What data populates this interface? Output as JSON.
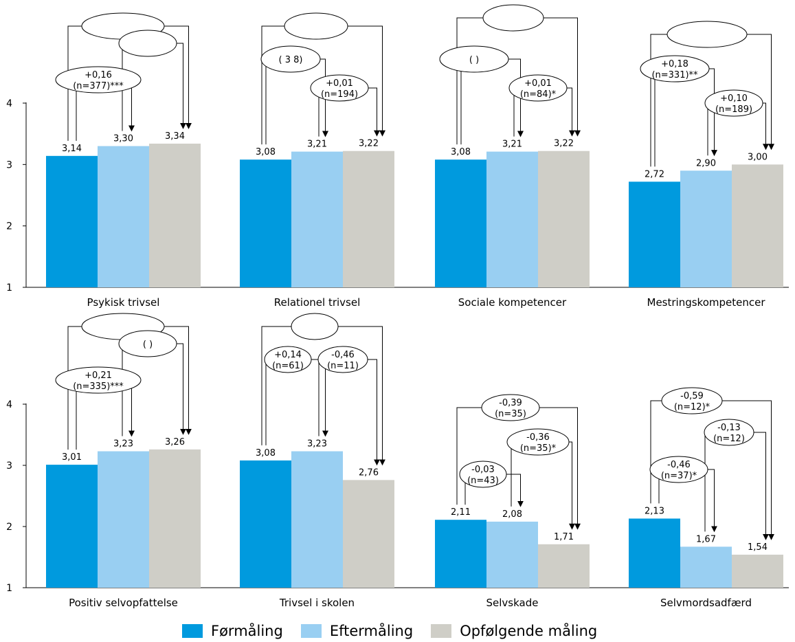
{
  "chart_data": {
    "type": "bar",
    "y_ticks": [
      "1",
      "2",
      "3",
      "4"
    ],
    "ylim": [
      1,
      4
    ],
    "grid": false,
    "legend_position": "bottom",
    "series": [
      {
        "name": "Førmåling",
        "color": "#009ADE"
      },
      {
        "name": "Eftermåling",
        "color": "#99CFF2"
      },
      {
        "name": "Opfølgende måling",
        "color": "#CFCEC7"
      }
    ],
    "panels": [
      {
        "category": "Psykisk trivsel",
        "values": [
          3.14,
          3.3,
          3.34
        ],
        "labels": [
          "3,14",
          "3,30",
          "3,34"
        ],
        "annotations": [
          {
            "from": 0,
            "to": 2,
            "text": [
              "",
              ""
            ],
            "dir": "top"
          },
          {
            "from": 1,
            "to": 2,
            "text": [
              "",
              ""
            ],
            "dir": "top"
          },
          {
            "from": 0,
            "to": 1,
            "text": [
              "+0,16",
              "(n=377)***"
            ],
            "dir": "top"
          }
        ]
      },
      {
        "category": "Relationel trivsel",
        "values": [
          3.08,
          3.21,
          3.22
        ],
        "labels": [
          "3,08",
          "3,21",
          "3,22"
        ],
        "annotations": [
          {
            "from": 0,
            "to": 2,
            "text": [
              "",
              ""
            ],
            "dir": "top"
          },
          {
            "from": 0,
            "to": 1,
            "text": [
              "(   3  8)",
              ""
            ],
            "dir": "top"
          },
          {
            "from": 1,
            "to": 2,
            "text": [
              "+0,01",
              "(n=194)"
            ],
            "dir": "top"
          }
        ]
      },
      {
        "category": "Sociale kompetencer",
        "values": [
          3.08,
          3.21,
          3.22
        ],
        "labels": [
          "3,08",
          "3,21",
          "3,22"
        ],
        "annotations": [
          {
            "from": 0,
            "to": 2,
            "text": [
              "",
              ""
            ],
            "dir": "top"
          },
          {
            "from": 0,
            "to": 1,
            "text": [
              "(          )",
              ""
            ],
            "dir": "top"
          },
          {
            "from": 1,
            "to": 2,
            "text": [
              "+0,01",
              "(n=84)*"
            ],
            "dir": "top"
          }
        ]
      },
      {
        "category": "Mestringskompetencer",
        "values": [
          2.72,
          2.9,
          3.0
        ],
        "labels": [
          "2,72",
          "2,90",
          "3,00"
        ],
        "annotations": [
          {
            "from": 0,
            "to": 2,
            "text": [
              "",
              ""
            ],
            "dir": "top"
          },
          {
            "from": 0,
            "to": 1,
            "text": [
              "+0,18",
              "(n=331)**"
            ],
            "dir": "top"
          },
          {
            "from": 1,
            "to": 2,
            "text": [
              "+0,10",
              "(n=189)"
            ],
            "dir": "top"
          }
        ]
      },
      {
        "category": "Positiv selvopfattelse",
        "values": [
          3.01,
          3.23,
          3.26
        ],
        "labels": [
          "3,01",
          "3,23",
          "3,26"
        ],
        "annotations": [
          {
            "from": 0,
            "to": 2,
            "text": [
              "",
              ""
            ],
            "dir": "top"
          },
          {
            "from": 1,
            "to": 2,
            "text": [
              "(          )",
              ""
            ],
            "dir": "top"
          },
          {
            "from": 0,
            "to": 1,
            "text": [
              "+0,21",
              "(n=335)***"
            ],
            "dir": "top"
          }
        ]
      },
      {
        "category": "Trivsel i skolen",
        "values": [
          3.08,
          3.23,
          2.76
        ],
        "labels": [
          "3,08",
          "3,23",
          "2,76"
        ],
        "annotations": [
          {
            "from": 0,
            "to": 2,
            "text": [
              "",
              ""
            ],
            "dir": "top"
          },
          {
            "from": 0,
            "to": 1,
            "text": [
              "+0,14",
              "(n=61)"
            ],
            "dir": "top"
          },
          {
            "from": 1,
            "to": 2,
            "text": [
              "-0,46",
              "(n=11)"
            ],
            "dir": "top"
          }
        ]
      },
      {
        "category": "Selvskade",
        "values": [
          2.11,
          2.08,
          1.71
        ],
        "labels": [
          "2,11",
          "2,08",
          "1,71"
        ],
        "annotations": [
          {
            "from": 0,
            "to": 2,
            "text": [
              "-0,39",
              "(n=35)"
            ],
            "dir": "top"
          },
          {
            "from": 1,
            "to": 2,
            "text": [
              "-0,36",
              "(n=35)*"
            ],
            "dir": "top"
          },
          {
            "from": 0,
            "to": 1,
            "text": [
              "-0,03",
              "(n=43)"
            ],
            "dir": "top"
          }
        ]
      },
      {
        "category": "Selvmordsadfærd",
        "values": [
          2.13,
          1.67,
          1.54
        ],
        "labels": [
          "2,13",
          "1,67",
          "1,54"
        ],
        "annotations": [
          {
            "from": 0,
            "to": 2,
            "text": [
              "-0,59",
              "(n=12)*"
            ],
            "dir": "top"
          },
          {
            "from": 1,
            "to": 2,
            "text": [
              "-0,13",
              "(n=12)"
            ],
            "dir": "top"
          },
          {
            "from": 0,
            "to": 1,
            "text": [
              "-0,46",
              "(n=37)*"
            ],
            "dir": "top"
          }
        ]
      }
    ]
  }
}
